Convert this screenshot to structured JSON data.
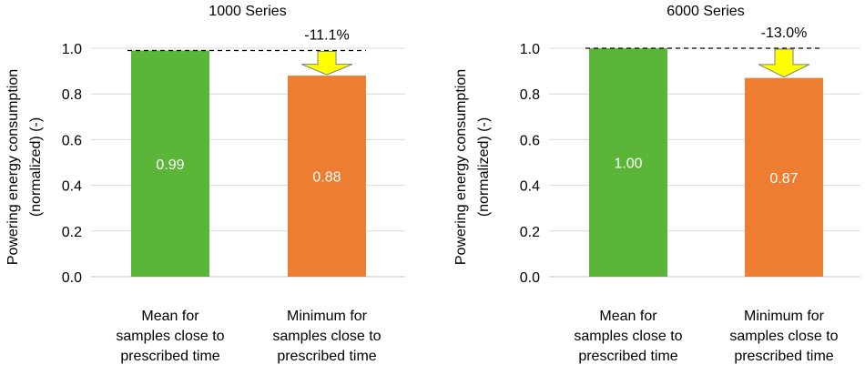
{
  "chart_data": [
    {
      "type": "bar",
      "title": "1000 Series",
      "ylabel_line1": "Powering energy consumption",
      "ylabel_line2": "(normalized) (-)",
      "categories": [
        [
          "Mean for",
          "samples close to",
          "prescribed time"
        ],
        [
          "Minimum for",
          "samples close to",
          "prescribed time"
        ]
      ],
      "values": [
        0.99,
        0.88
      ],
      "value_labels": [
        "0.99",
        "0.88"
      ],
      "colors": [
        "#5bb538",
        "#ed7d31"
      ],
      "ylim": [
        0,
        1.0
      ],
      "yticks": [
        "0.0",
        "0.2",
        "0.4",
        "0.6",
        "0.8",
        "1.0"
      ],
      "grid": true,
      "reference_line": 0.99,
      "annotation": "-11.1%"
    },
    {
      "type": "bar",
      "title": "6000 Series",
      "ylabel_line1": "Powering energy consumption",
      "ylabel_line2": "(normalized) (-)",
      "categories": [
        [
          "Mean for",
          "samples close to",
          "prescribed time"
        ],
        [
          "Minimum for",
          "samples close to",
          "prescribed time"
        ]
      ],
      "values": [
        1.0,
        0.87
      ],
      "value_labels": [
        "1.00",
        "0.87"
      ],
      "colors": [
        "#5bb538",
        "#ed7d31"
      ],
      "ylim": [
        0,
        1.0
      ],
      "yticks": [
        "0.0",
        "0.2",
        "0.4",
        "0.6",
        "0.8",
        "1.0"
      ],
      "grid": true,
      "reference_line": 1.0,
      "annotation": "-13.0%"
    }
  ],
  "colors": {
    "arrow_fill": "#ffff00",
    "arrow_stroke": "#7f7f7f",
    "grid": "#d9d9d9"
  }
}
